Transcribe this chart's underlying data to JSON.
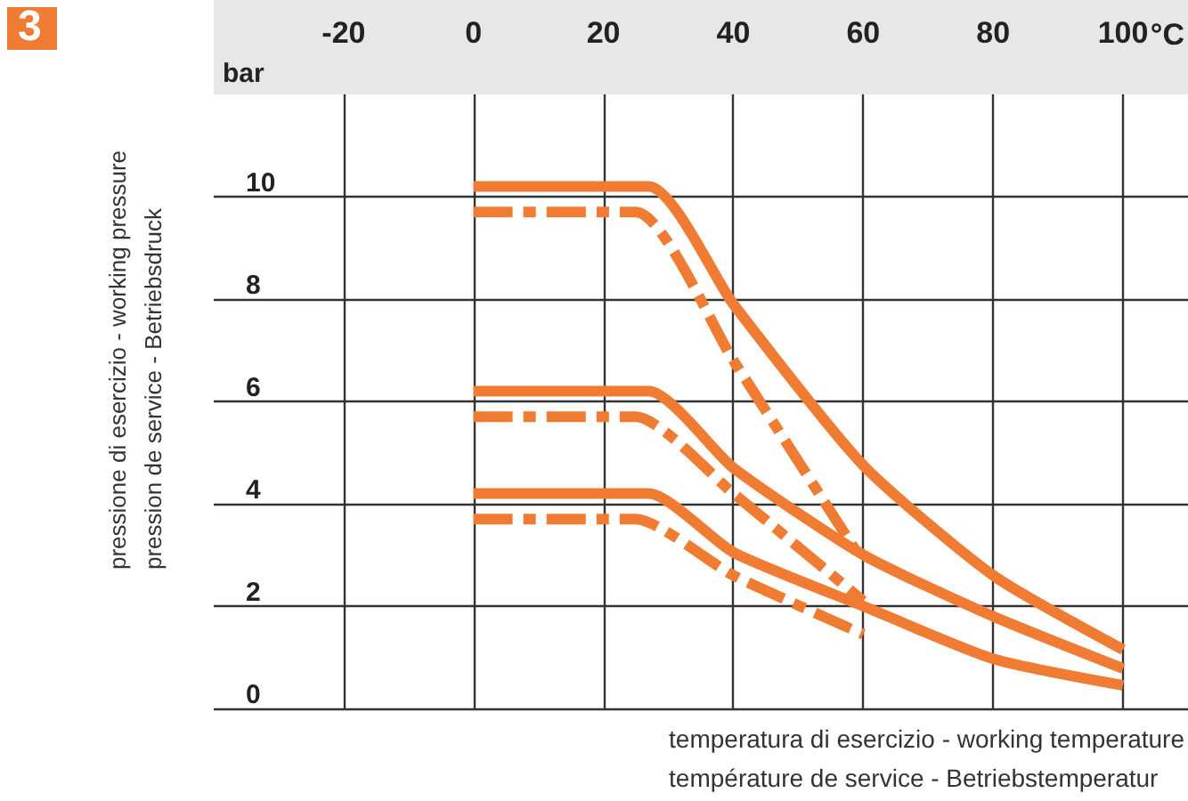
{
  "chart_data": {
    "type": "line",
    "xlabel": "temperatura di esercizio - working temperature\ntempérature de service - Betriebstemperatur",
    "ylabel": "pressione di esercizio - working pressure\npression de service - Betriebsdruck",
    "annotations": [
      "3",
      "bar",
      "°C"
    ],
    "xlim": [
      -40,
      110
    ],
    "xticks": [
      -20,
      0,
      20,
      40,
      60,
      80,
      100
    ],
    "ylim": [
      0,
      12
    ],
    "yticks": [
      0,
      2,
      4,
      6,
      8,
      10
    ],
    "grid": true,
    "marker": "none",
    "series": [
      {
        "color": "#f07c34",
        "line_style": "solid",
        "x": [
          0,
          27,
          40,
          60,
          80,
          100
        ],
        "values": [
          10.2,
          10.2,
          7.9,
          4.75,
          2.6,
          1.15
        ]
      },
      {
        "color": "#f07c34",
        "line_style": "dashed",
        "x": [
          0,
          25,
          40,
          59
        ],
        "values": [
          9.7,
          9.7,
          6.8,
          3.05
        ]
      },
      {
        "color": "#f07c34",
        "line_style": "solid",
        "x": [
          0,
          27,
          40,
          60,
          80,
          100
        ],
        "values": [
          6.2,
          6.2,
          4.7,
          3.0,
          1.8,
          0.78
        ]
      },
      {
        "color": "#f07c34",
        "line_style": "dashed",
        "x": [
          0,
          25,
          40,
          60
        ],
        "values": [
          5.7,
          5.7,
          4.2,
          2.1
        ]
      },
      {
        "color": "#f07c34",
        "line_style": "solid",
        "x": [
          0,
          27,
          40,
          60,
          80,
          100
        ],
        "values": [
          4.2,
          4.2,
          3.05,
          2.0,
          0.97,
          0.45
        ]
      },
      {
        "color": "#f07c34",
        "line_style": "dashed",
        "x": [
          0,
          25,
          40,
          60
        ],
        "values": [
          3.7,
          3.7,
          2.6,
          1.45
        ]
      }
    ]
  }
}
